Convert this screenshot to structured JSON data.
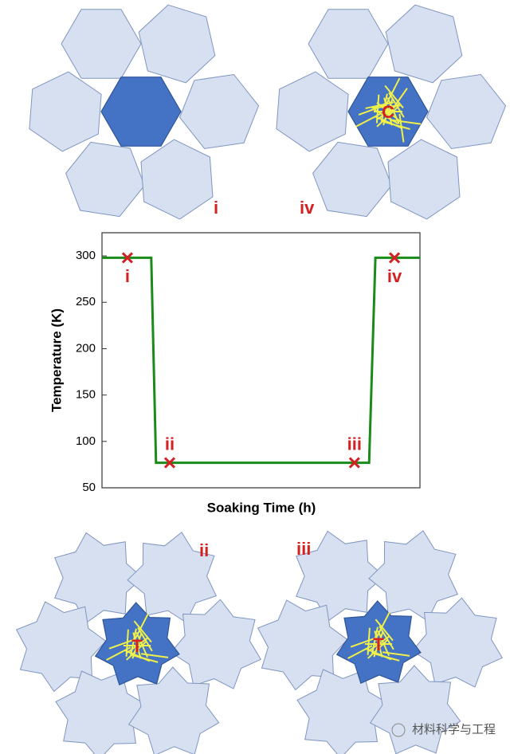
{
  "chart_data": {
    "type": "line",
    "ylabel": "Temperature (K)",
    "xlabel": "Soaking Time (h)",
    "x": [
      0,
      15.5,
      17,
      84,
      86,
      100
    ],
    "values": [
      298,
      298,
      77,
      77,
      298,
      298
    ],
    "color": "#1a8a1a",
    "xlim": [
      0,
      100
    ],
    "ylim": [
      50,
      325
    ],
    "yticks": [
      50,
      100,
      150,
      200,
      250,
      300
    ],
    "markers": {
      "x": [
        8,
        21.3,
        79.4,
        92
      ],
      "values": [
        298,
        77,
        77,
        298
      ],
      "labels": [
        "i",
        "ii",
        "iii",
        "iv"
      ],
      "color": "#d42020"
    }
  },
  "diagrams": {
    "top_left": "i",
    "top_right": "iv",
    "top_right_center": "C",
    "bottom_left": "ii",
    "bottom_left_center": "T",
    "bottom_right": "iii",
    "bottom_right_center": "T",
    "watermark": "材料科学与工程"
  }
}
